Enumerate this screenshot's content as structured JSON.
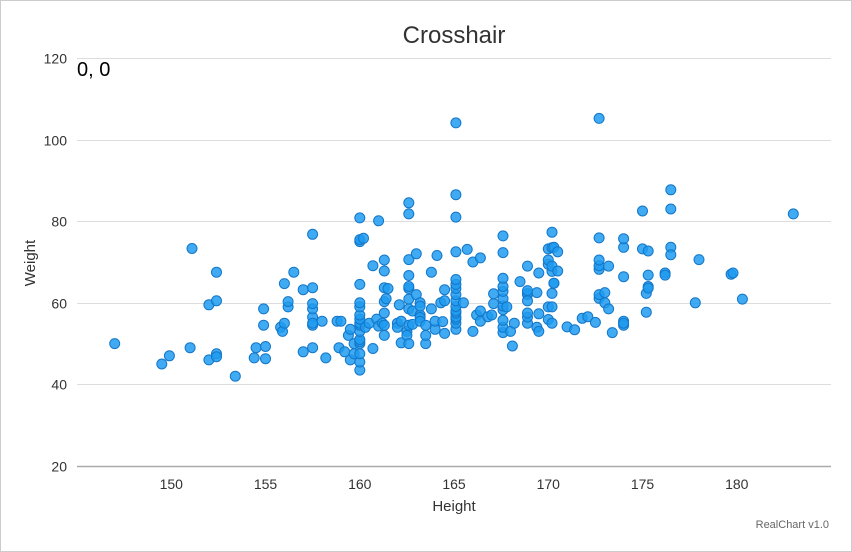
{
  "chart_data": {
    "type": "scatter",
    "title": "Crosshair",
    "xlabel": "Height",
    "ylabel": "Weight",
    "xlim": [
      145,
      185
    ],
    "ylim": [
      20,
      120
    ],
    "xticks": [
      150,
      155,
      160,
      165,
      170,
      175,
      180
    ],
    "yticks": [
      20,
      40,
      60,
      80,
      100,
      120
    ],
    "grid": true,
    "legend": "none",
    "marker_color": "#1e9bf0",
    "marker_stroke": "#1477c9",
    "crosshair_readout": "0, 0",
    "credit": "RealChart v1.0",
    "series": [
      {
        "points": [
          [
            147.0,
            50.0
          ],
          [
            149.5,
            45.0
          ],
          [
            149.9,
            47.0
          ],
          [
            151.0,
            49.0
          ],
          [
            151.1,
            73.3
          ],
          [
            152.0,
            59.5
          ],
          [
            152.0,
            46.0
          ],
          [
            152.4,
            47.5
          ],
          [
            152.4,
            46.8
          ],
          [
            152.4,
            60.5
          ],
          [
            152.4,
            67.5
          ],
          [
            153.4,
            42.0
          ],
          [
            154.4,
            46.5
          ],
          [
            154.5,
            49.0
          ],
          [
            154.9,
            58.5
          ],
          [
            154.9,
            54.5
          ],
          [
            155.0,
            49.3
          ],
          [
            155.0,
            46.3
          ],
          [
            155.8,
            54.0
          ],
          [
            155.9,
            53.0
          ],
          [
            156.0,
            55.0
          ],
          [
            156.0,
            64.7
          ],
          [
            156.2,
            59.0
          ],
          [
            156.2,
            60.3
          ],
          [
            156.5,
            67.5
          ],
          [
            157.0,
            48.0
          ],
          [
            157.0,
            63.2
          ],
          [
            157.5,
            49.0
          ],
          [
            157.5,
            63.7
          ],
          [
            157.5,
            56.5
          ],
          [
            157.5,
            54.5
          ],
          [
            157.5,
            76.8
          ],
          [
            157.5,
            58.5
          ],
          [
            157.5,
            59.8
          ],
          [
            157.5,
            55.0
          ],
          [
            158.0,
            55.5
          ],
          [
            158.2,
            46.5
          ],
          [
            158.8,
            55.5
          ],
          [
            158.9,
            49.0
          ],
          [
            159.0,
            55.5
          ],
          [
            159.2,
            48.0
          ],
          [
            159.4,
            52.0
          ],
          [
            159.5,
            46.0
          ],
          [
            159.5,
            53.5
          ],
          [
            159.7,
            50.0
          ],
          [
            159.7,
            47.5
          ],
          [
            160.0,
            43.5
          ],
          [
            160.0,
            45.5
          ],
          [
            160.0,
            47.5
          ],
          [
            160.0,
            50.0
          ],
          [
            160.0,
            50.5
          ],
          [
            160.0,
            51.0
          ],
          [
            160.0,
            53.0
          ],
          [
            160.0,
            54.5
          ],
          [
            160.0,
            55.0
          ],
          [
            160.0,
            56.0
          ],
          [
            160.0,
            57.0
          ],
          [
            160.0,
            59.0
          ],
          [
            160.0,
            60.0
          ],
          [
            160.0,
            64.5
          ],
          [
            160.0,
            75.0
          ],
          [
            160.0,
            75.5
          ],
          [
            160.0,
            80.8
          ],
          [
            160.2,
            75.8
          ],
          [
            160.3,
            54.0
          ],
          [
            160.5,
            55.0
          ],
          [
            160.7,
            48.8
          ],
          [
            160.7,
            69.1
          ],
          [
            160.9,
            56.0
          ],
          [
            161.0,
            54.3
          ],
          [
            161.0,
            80.1
          ],
          [
            161.2,
            55.0
          ],
          [
            161.3,
            54.5
          ],
          [
            161.3,
            52.0
          ],
          [
            161.3,
            57.5
          ],
          [
            161.3,
            67.8
          ],
          [
            161.3,
            70.5
          ],
          [
            161.3,
            60.3
          ],
          [
            161.3,
            63.7
          ],
          [
            161.4,
            61.0
          ],
          [
            161.5,
            63.5
          ],
          [
            162.0,
            55.0
          ],
          [
            162.0,
            54.0
          ],
          [
            162.1,
            59.5
          ],
          [
            162.2,
            55.5
          ],
          [
            162.2,
            50.2
          ],
          [
            162.5,
            53.0
          ],
          [
            162.5,
            52.0
          ],
          [
            162.6,
            50.0
          ],
          [
            162.6,
            54.5
          ],
          [
            162.6,
            58.5
          ],
          [
            162.6,
            60.9
          ],
          [
            162.6,
            63.5
          ],
          [
            162.6,
            64.0
          ],
          [
            162.6,
            66.7
          ],
          [
            162.6,
            70.6
          ],
          [
            162.6,
            81.8
          ],
          [
            162.6,
            84.5
          ],
          [
            162.8,
            54.7
          ],
          [
            162.8,
            58.0
          ],
          [
            163.0,
            62.0
          ],
          [
            163.0,
            72.0
          ],
          [
            163.2,
            60.0
          ],
          [
            163.2,
            57.0
          ],
          [
            163.2,
            56.4
          ],
          [
            163.2,
            55.5
          ],
          [
            163.2,
            59.2
          ],
          [
            163.5,
            54.5
          ],
          [
            163.5,
            50.0
          ],
          [
            163.5,
            52.0
          ],
          [
            163.8,
            58.5
          ],
          [
            163.8,
            67.5
          ],
          [
            164.0,
            53.5
          ],
          [
            164.0,
            55.5
          ],
          [
            164.1,
            71.6
          ],
          [
            164.3,
            60.0
          ],
          [
            164.4,
            55.4
          ],
          [
            164.5,
            52.5
          ],
          [
            164.5,
            60.5
          ],
          [
            164.5,
            63.2
          ],
          [
            165.1,
            53.5
          ],
          [
            165.1,
            55.0
          ],
          [
            165.1,
            56.0
          ],
          [
            165.1,
            56.5
          ],
          [
            165.1,
            57.5
          ],
          [
            165.1,
            58.0
          ],
          [
            165.1,
            59.1
          ],
          [
            165.1,
            60.5
          ],
          [
            165.1,
            62.0
          ],
          [
            165.1,
            63.5
          ],
          [
            165.1,
            64.5
          ],
          [
            165.1,
            65.7
          ],
          [
            165.1,
            72.5
          ],
          [
            165.1,
            81.0
          ],
          [
            165.1,
            86.5
          ],
          [
            165.1,
            104.1
          ],
          [
            165.5,
            60.0
          ],
          [
            165.7,
            73.1
          ],
          [
            166.0,
            53.0
          ],
          [
            166.0,
            70.0
          ],
          [
            166.2,
            57.0
          ],
          [
            166.4,
            55.5
          ],
          [
            166.4,
            58.0
          ],
          [
            166.4,
            71.0
          ],
          [
            166.8,
            56.6
          ],
          [
            167.0,
            57.0
          ],
          [
            167.1,
            59.8
          ],
          [
            167.1,
            62.2
          ],
          [
            167.6,
            52.7
          ],
          [
            167.6,
            54.0
          ],
          [
            167.6,
            55.7
          ],
          [
            167.6,
            58.3
          ],
          [
            167.6,
            59.2
          ],
          [
            167.6,
            61.0
          ],
          [
            167.6,
            62.8
          ],
          [
            167.6,
            64.0
          ],
          [
            167.6,
            66.0
          ],
          [
            167.6,
            72.3
          ],
          [
            167.6,
            76.4
          ],
          [
            167.8,
            59.0
          ],
          [
            168.0,
            53.0
          ],
          [
            168.1,
            49.4
          ],
          [
            168.2,
            55.0
          ],
          [
            168.5,
            65.2
          ],
          [
            168.9,
            55.0
          ],
          [
            168.9,
            56.5
          ],
          [
            168.9,
            57.5
          ],
          [
            168.9,
            62.0
          ],
          [
            168.9,
            62.3
          ],
          [
            168.9,
            63.0
          ],
          [
            168.9,
            69.0
          ],
          [
            168.9,
            60.5
          ],
          [
            169.4,
            54.0
          ],
          [
            169.4,
            62.5
          ],
          [
            169.5,
            53.0
          ],
          [
            169.5,
            67.3
          ],
          [
            169.5,
            57.3
          ],
          [
            170.0,
            55.9
          ],
          [
            170.0,
            59.0
          ],
          [
            170.0,
            69.4
          ],
          [
            170.0,
            73.2
          ],
          [
            170.0,
            70.5
          ],
          [
            170.2,
            55.0
          ],
          [
            170.2,
            59.0
          ],
          [
            170.2,
            62.3
          ],
          [
            170.2,
            67.7
          ],
          [
            170.2,
            69.0
          ],
          [
            170.2,
            73.5
          ],
          [
            170.2,
            77.3
          ],
          [
            170.3,
            64.8
          ],
          [
            170.3,
            73.6
          ],
          [
            170.5,
            67.8
          ],
          [
            170.3,
            64.8
          ],
          [
            170.5,
            72.5
          ],
          [
            171.0,
            54.1
          ],
          [
            171.4,
            53.4
          ],
          [
            171.8,
            56.2
          ],
          [
            172.1,
            56.6
          ],
          [
            172.5,
            55.2
          ],
          [
            172.7,
            61.1
          ],
          [
            172.7,
            62.0
          ],
          [
            172.7,
            68.2
          ],
          [
            172.7,
            69.1
          ],
          [
            172.7,
            70.5
          ],
          [
            172.7,
            75.9
          ],
          [
            172.7,
            105.2
          ],
          [
            173.0,
            62.5
          ],
          [
            173.0,
            60.0
          ],
          [
            173.2,
            58.5
          ],
          [
            173.2,
            69.0
          ],
          [
            173.4,
            52.7
          ],
          [
            174.0,
            55.5
          ],
          [
            174.0,
            54.5
          ],
          [
            174.0,
            55.0
          ],
          [
            174.0,
            66.4
          ],
          [
            174.0,
            73.6
          ],
          [
            174.0,
            75.7
          ],
          [
            175.0,
            82.5
          ],
          [
            175.0,
            73.2
          ],
          [
            175.2,
            62.3
          ],
          [
            175.3,
            66.8
          ],
          [
            175.3,
            64.0
          ],
          [
            175.3,
            63.6
          ],
          [
            175.3,
            72.7
          ],
          [
            175.2,
            57.7
          ],
          [
            176.2,
            67.3
          ],
          [
            176.2,
            66.8
          ],
          [
            176.5,
            73.6
          ],
          [
            176.5,
            71.8
          ],
          [
            176.5,
            87.7
          ],
          [
            176.5,
            83.0
          ],
          [
            177.8,
            60.0
          ],
          [
            178.0,
            70.6
          ],
          [
            179.7,
            67.0
          ],
          [
            179.8,
            67.3
          ],
          [
            180.3,
            60.9
          ],
          [
            183.0,
            81.8
          ]
        ]
      }
    ]
  }
}
